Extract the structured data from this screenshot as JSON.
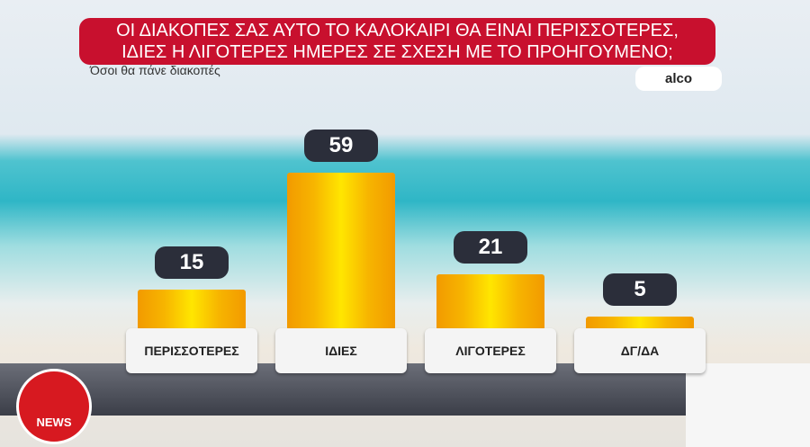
{
  "chart_data": {
    "type": "bar",
    "title": "ΟΙ ΔΙΑΚΟΠΕΣ ΣΑΣ ΑΥΤΟ ΤΟ ΚΑΛΟΚΑΙΡΙ ΘΑ ΕΙΝΑΙ ΠΕΡΙΣΣΟΤΕΡΕΣ, ΙΔΙΕΣ Η ΛΙΓΟΤΕΡΕΣ ΗΜΕΡΕΣ ΣΕ ΣΧΕΣΗ ΜΕ ΤΟ ΠΡΟΗΓΟΥΜΕΝΟ;",
    "subtitle": "Όσοι θα πάνε διακοπές",
    "source": "alco",
    "categories": [
      "ΠΕΡΙΣΣΟΤΕΡΕΣ",
      "ΙΔΙΕΣ",
      "ΛΙΓΟΤΕΡΕΣ",
      "ΔΓ/ΔΑ"
    ],
    "values": [
      15,
      59,
      21,
      5
    ],
    "color": "#f7b500"
  },
  "logo_text": "NEWS"
}
